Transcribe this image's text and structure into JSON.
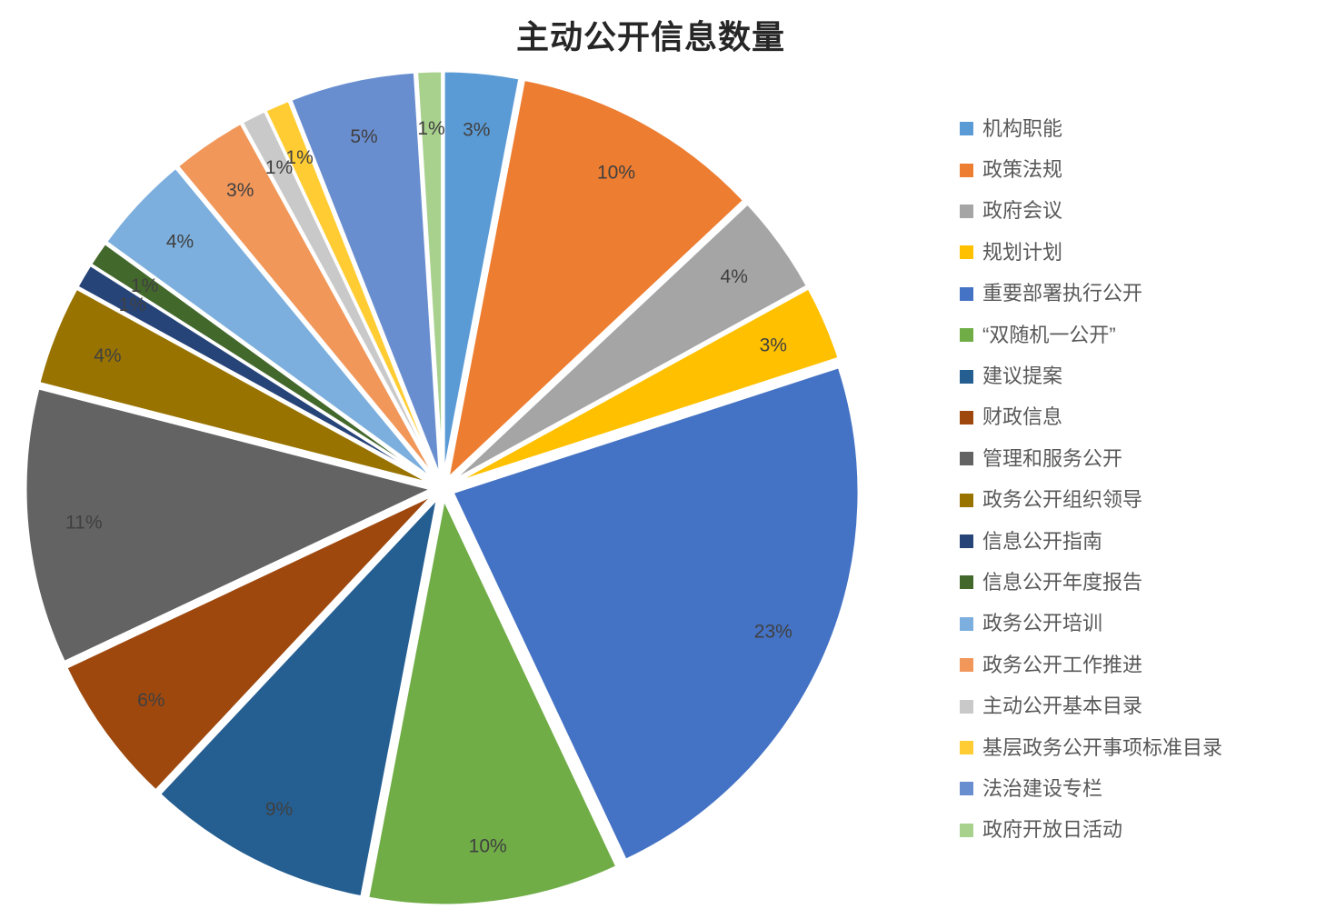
{
  "chart_data": {
    "type": "pie",
    "title": "主动公开信息数量",
    "legend_position": "right",
    "start_angle_deg": 0,
    "direction": "clockwise",
    "exploded": true,
    "value_format": "percent",
    "label_color": "#404040",
    "legend_text_color": "#595959",
    "slices": [
      {
        "label": "机构职能",
        "value": 3,
        "color": "#5B9BD5"
      },
      {
        "label": "政策法规",
        "value": 10,
        "color": "#ED7D31"
      },
      {
        "label": "政府会议",
        "value": 4,
        "color": "#A5A5A5"
      },
      {
        "label": "规划计划",
        "value": 3,
        "color": "#FFC000"
      },
      {
        "label": "重要部署执行公开",
        "value": 23,
        "color": "#4472C4"
      },
      {
        "label": "“双随机一公开”",
        "value": 10,
        "color": "#70AD47"
      },
      {
        "label": "建议提案",
        "value": 9,
        "color": "#255E91"
      },
      {
        "label": "财政信息",
        "value": 6,
        "color": "#9E480E"
      },
      {
        "label": "管理和服务公开",
        "value": 11,
        "color": "#636363"
      },
      {
        "label": "政务公开组织领导",
        "value": 4,
        "color": "#997300"
      },
      {
        "label": "信息公开指南",
        "value": 1,
        "color": "#264478"
      },
      {
        "label": "信息公开年度报告",
        "value": 1,
        "color": "#43682B"
      },
      {
        "label": "政务公开培训",
        "value": 4,
        "color": "#7CAFDD"
      },
      {
        "label": "政务公开工作推进",
        "value": 3,
        "color": "#F1975A"
      },
      {
        "label": "主动公开基本目录",
        "value": 1,
        "color": "#C9C9C9"
      },
      {
        "label": "基层政务公开事项标准目录",
        "value": 1,
        "color": "#FFCD33"
      },
      {
        "label": "法治建设专栏",
        "value": 5,
        "color": "#698ED0"
      },
      {
        "label": "政府开放日活动",
        "value": 1,
        "color": "#A9D18E"
      }
    ]
  }
}
